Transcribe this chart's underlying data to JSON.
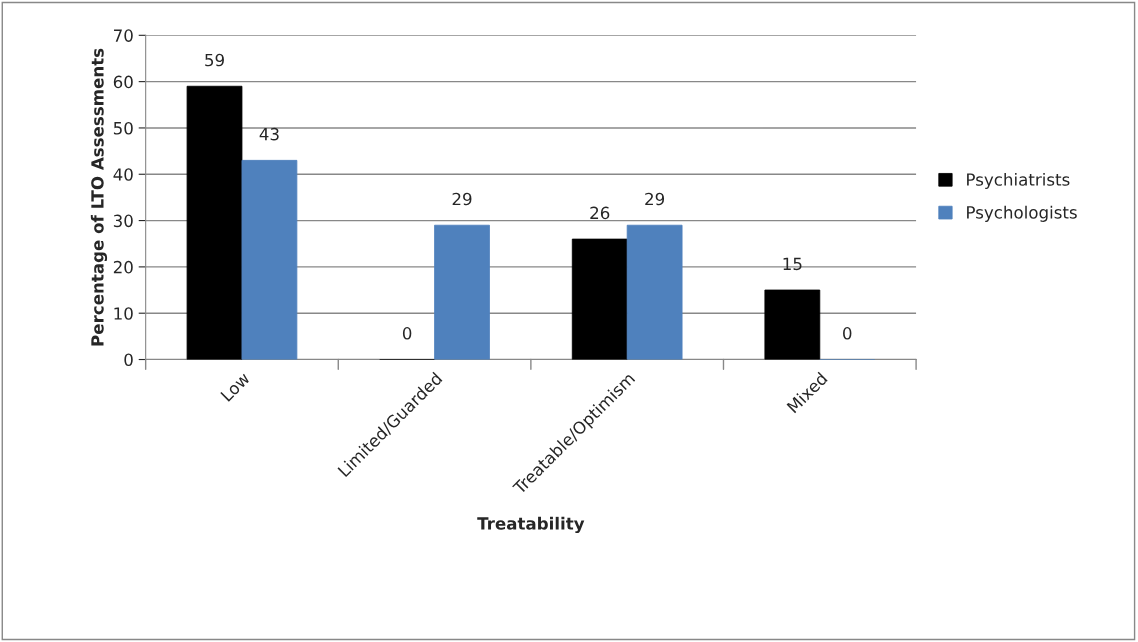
{
  "chart_data": {
    "type": "bar",
    "xlabel": "Treatability",
    "ylabel": "Percentage of LTO Assessments",
    "categories": [
      "Low",
      "Limited/Guarded",
      "Treatable/Optimism",
      "Mixed"
    ],
    "series": [
      {
        "name": "Psychiatrists",
        "color": "#000000",
        "values": [
          59,
          0,
          26,
          15
        ]
      },
      {
        "name": "Psychologists",
        "color": "#4f81bd",
        "values": [
          43,
          29,
          29,
          0
        ]
      }
    ],
    "ylim": [
      0,
      70
    ],
    "yticks": [
      0,
      10,
      20,
      30,
      40,
      50,
      60,
      70
    ],
    "grid": "y",
    "legend": "right",
    "data_labels": true
  }
}
